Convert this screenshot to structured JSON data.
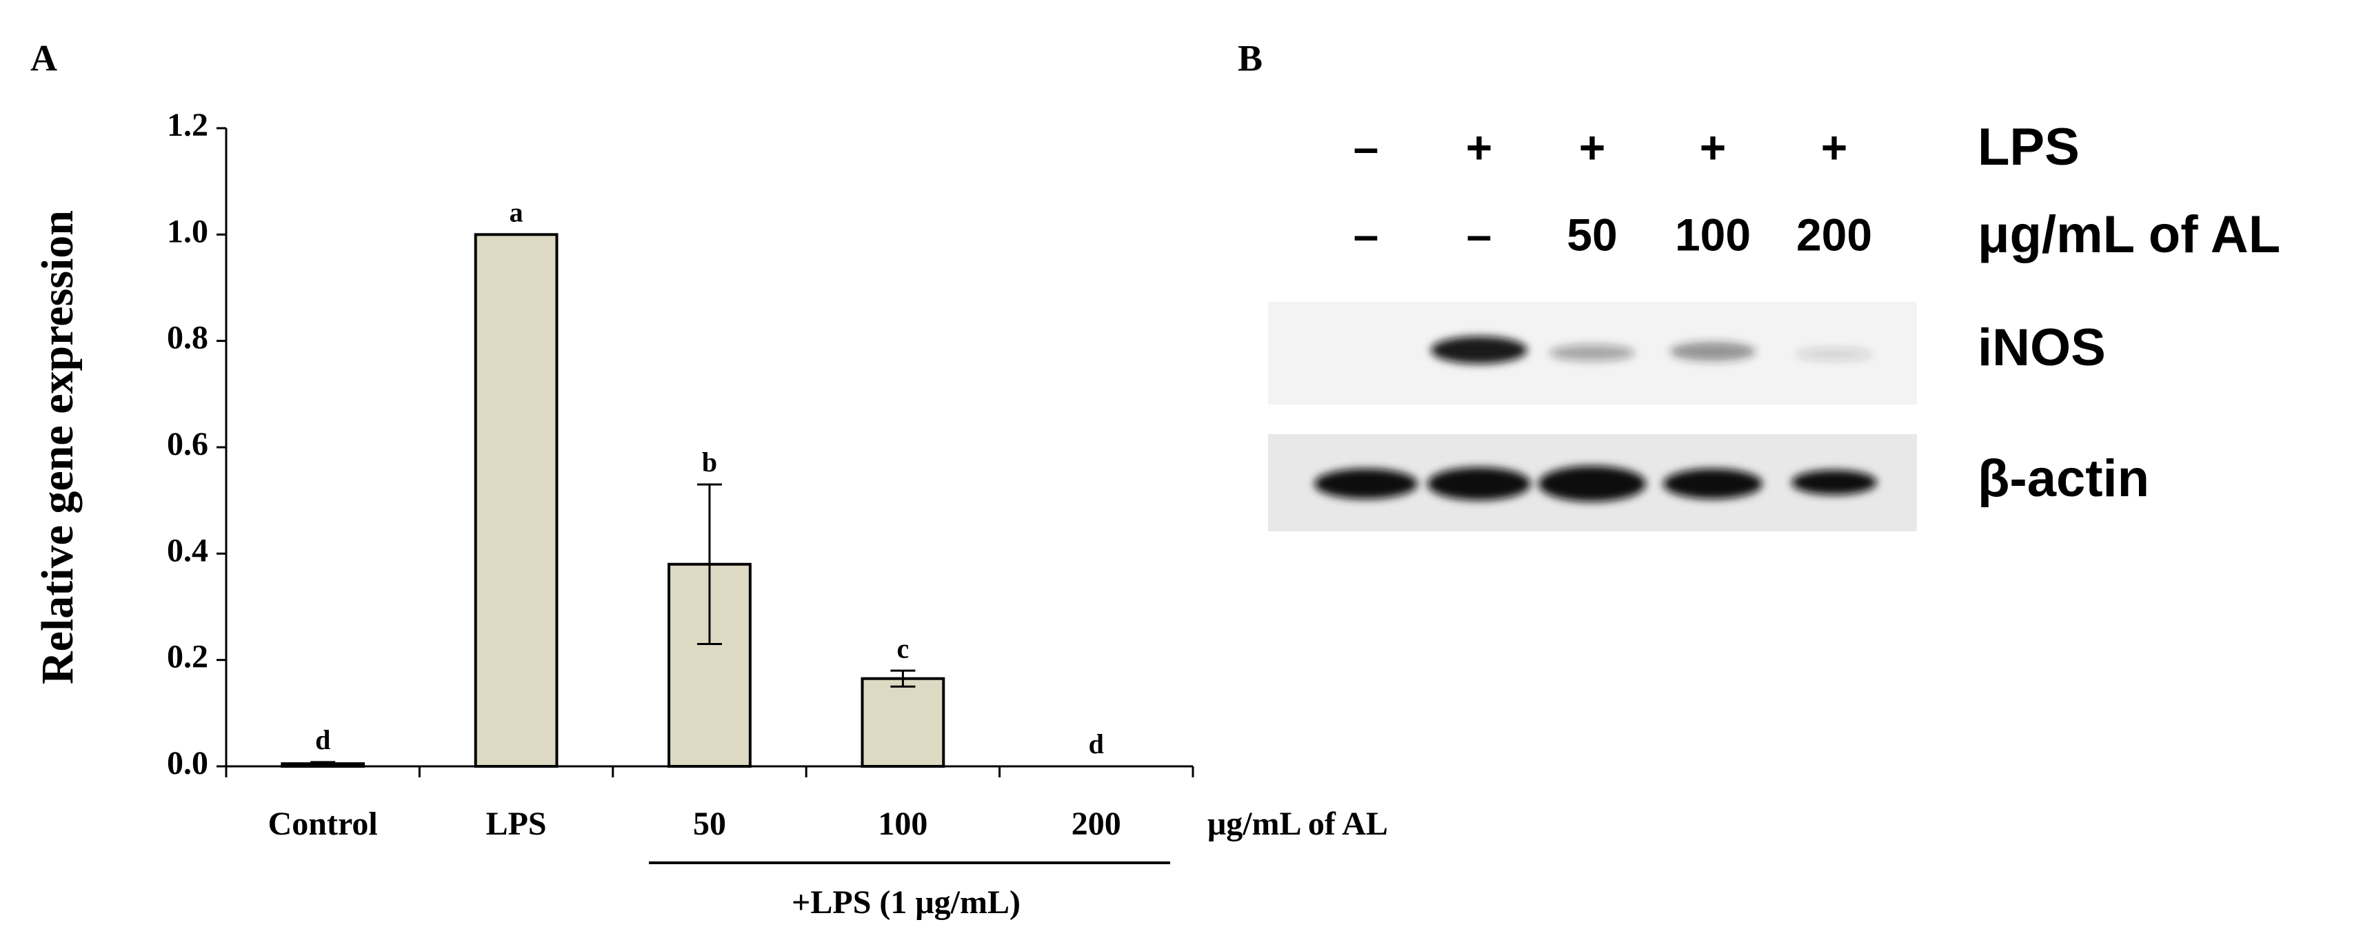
{
  "panel_labels": [
    "A",
    "B"
  ],
  "chart_data": {
    "type": "bar",
    "ylabel": "Relative gene expression",
    "categories": [
      "Control",
      "LPS",
      "50",
      "100",
      "200"
    ],
    "values": [
      0.005,
      1.0,
      0.38,
      0.165,
      0.0
    ],
    "errors": [
      0.003,
      0.0,
      0.15,
      0.015,
      0.0
    ],
    "annotations": [
      "d",
      "a",
      "b",
      "c",
      "d"
    ],
    "color": "#ddd9c3",
    "ylim": [
      0,
      1.2
    ],
    "yticks": [
      {
        "value": 0,
        "label": "0.0"
      },
      0.2,
      0.4,
      0.6,
      0.8,
      {
        "value": 1,
        "label": "1.0"
      },
      1.2
    ],
    "xlabel": "μg/mL of AL",
    "group_label": "+LPS (1 μg/mL)"
  },
  "blot": {
    "lps_row": [
      "–",
      "+",
      "+",
      "+",
      "+"
    ],
    "lps_label": "LPS",
    "dose_row": [
      "–",
      "–",
      "50",
      "100",
      "200"
    ],
    "dose_label": "μg/mL of AL",
    "bands": [
      "iNOS",
      "β-actin"
    ]
  }
}
